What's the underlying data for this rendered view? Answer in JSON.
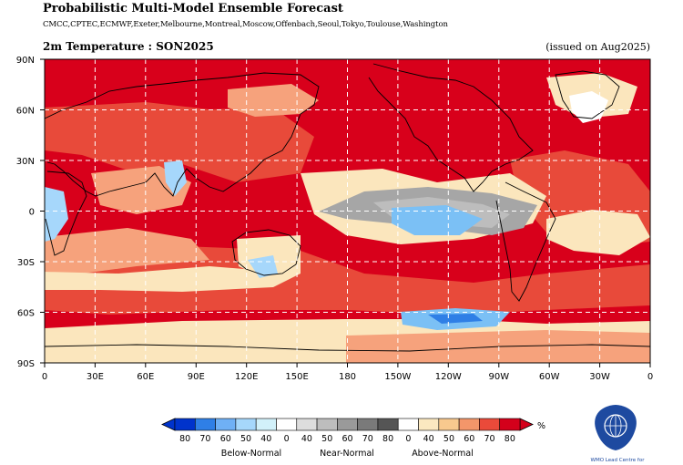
{
  "header": {
    "title": "Probabilistic Multi-Model Ensemble Forecast",
    "models": "CMCC,CPTEC,ECMWF,Exeter,Melbourne,Montreal,Moscow,Offenbach,Seoul,Tokyo,Toulouse,Washington",
    "subtitle": "2m Temperature : SON2025",
    "issued": "(issued on Aug2025)"
  },
  "map": {
    "lat_labels": [
      "90N",
      "60N",
      "30N",
      "0",
      "30S",
      "60S",
      "90S"
    ],
    "lon_labels": [
      "0",
      "30E",
      "60E",
      "90E",
      "120E",
      "150E",
      "180",
      "150W",
      "120W",
      "90W",
      "60W",
      "30W",
      "0"
    ]
  },
  "legend": {
    "unit": "%",
    "numbers": [
      "80",
      "70",
      "60",
      "50",
      "40",
      "0",
      "40",
      "50",
      "60",
      "70",
      "80",
      "0",
      "40",
      "50",
      "60",
      "70",
      "80"
    ],
    "categories": [
      "Below-Normal",
      "Near-Normal",
      "Above-Normal"
    ],
    "colors": [
      "#0033cc",
      "#2f7fe6",
      "#6fb0f5",
      "#a6d7fb",
      "#d2f1fa",
      "#ffffff",
      "#dddddd",
      "#bdbdbd",
      "#9a9a9a",
      "#7a7a7a",
      "#555555",
      "#ffffff",
      "#fbe8c0",
      "#f8c98e",
      "#f3966a",
      "#ea4a3a",
      "#d4001b"
    ]
  },
  "logo": {
    "caption": "WMO Lead Centre for"
  },
  "colors": {
    "warm_dark": "#d8001b",
    "warm_mid": "#e8463a",
    "warm_light": "#f5a07a",
    "cream": "#fbe6bd",
    "near_normal_grey": "#a6a6a6",
    "cold_blue": "#7bc0f5",
    "wmo_blue": "#1e4aa0"
  }
}
